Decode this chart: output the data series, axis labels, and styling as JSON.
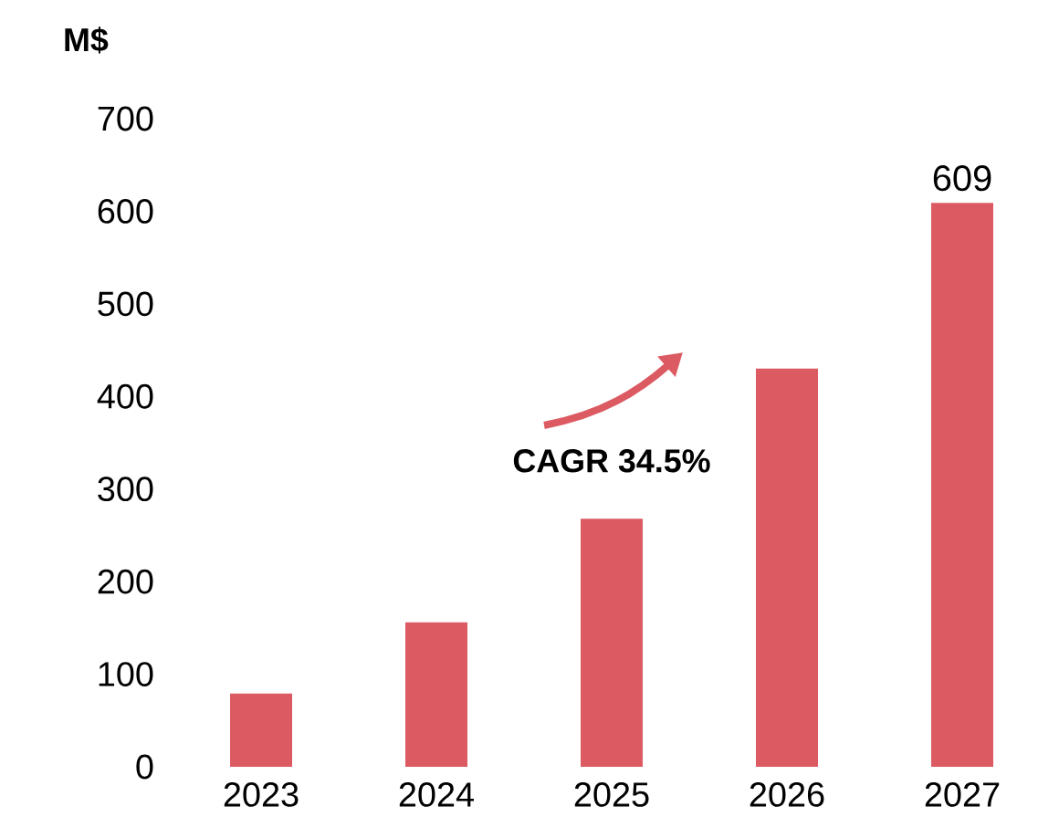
{
  "chart_data": {
    "type": "bar",
    "ylabel": "M$",
    "categories": [
      "2023",
      "2024",
      "2025",
      "2026",
      "2027"
    ],
    "values": [
      79,
      156,
      268,
      430,
      609
    ],
    "value_labels": [
      null,
      null,
      null,
      null,
      "609"
    ],
    "color": "#dc5b63",
    "ylim": [
      0,
      700
    ],
    "yticks": [
      0,
      100,
      200,
      300,
      400,
      500,
      600,
      700
    ],
    "grid": false,
    "annotations": [
      "CAGR 34.5%"
    ]
  }
}
